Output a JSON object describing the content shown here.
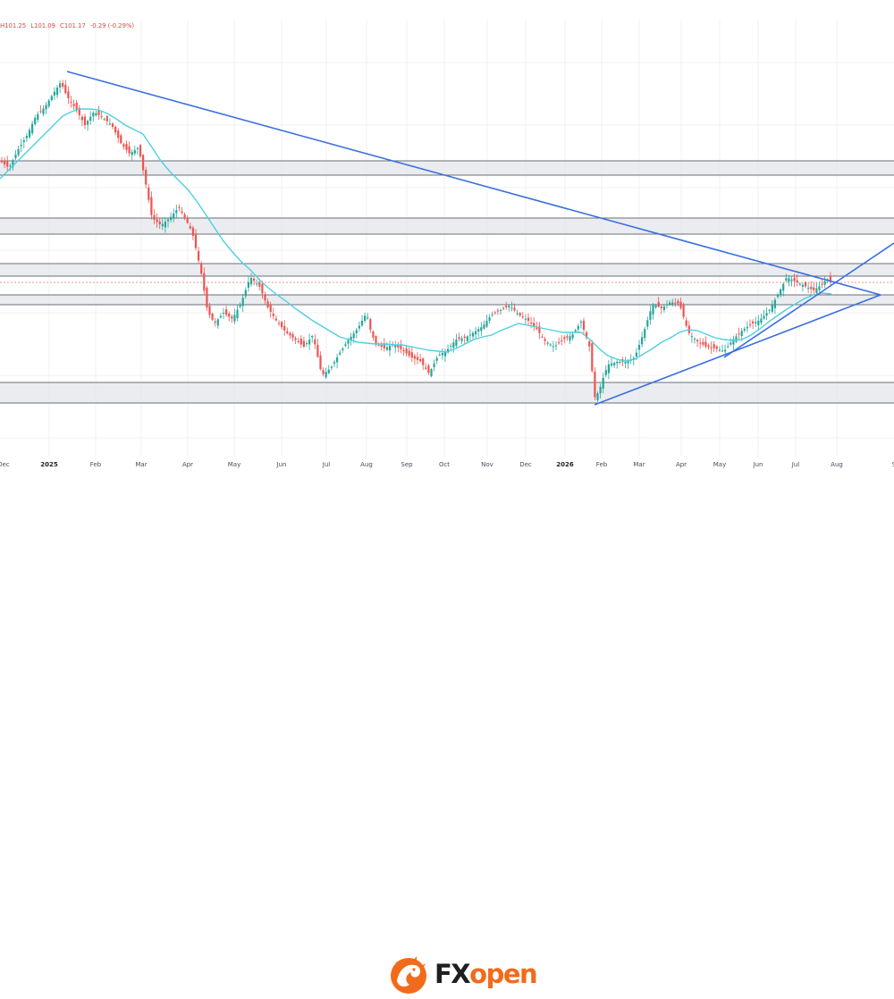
{
  "ohlc": {
    "high": "H101.25",
    "low": "L101.09",
    "close": "C101.17",
    "change": "-0.29 (-0.29%)"
  },
  "brand": {
    "fx": "FX",
    "open": "open",
    "accent": "#f26a1b",
    "dark": "#1f1f1f",
    "icon": "dragon-logo-icon"
  },
  "colors": {
    "up": "#26a69a",
    "down": "#ef5350",
    "ma": "#4dd0e1",
    "trendline": "#3b6fe0",
    "zone_fill": "#e3e5e9",
    "zone_border": "#6b6f78"
  },
  "chart_data": {
    "type": "candlestick",
    "x_ticks": [
      "Dec",
      "2025",
      "Feb",
      "Mar",
      "Apr",
      "May",
      "Jun",
      "Jul",
      "Aug",
      "Sep",
      "Oct",
      "Nov",
      "Dec",
      "2026",
      "Feb",
      "Mar",
      "Apr",
      "May",
      "Jun",
      "Jul",
      "Aug",
      "S"
    ],
    "y_ticks": [],
    "close_path": [
      [
        0,
        180
      ],
      [
        10,
        188
      ],
      [
        20,
        168
      ],
      [
        30,
        152
      ],
      [
        40,
        130
      ],
      [
        50,
        120
      ],
      [
        60,
        104
      ],
      [
        68,
        92
      ],
      [
        75,
        108
      ],
      [
        85,
        122
      ],
      [
        95,
        140
      ],
      [
        105,
        125
      ],
      [
        115,
        132
      ],
      [
        125,
        140
      ],
      [
        135,
        160
      ],
      [
        145,
        172
      ],
      [
        155,
        165
      ],
      [
        162,
        200
      ],
      [
        170,
        244
      ],
      [
        180,
        252
      ],
      [
        190,
        244
      ],
      [
        200,
        232
      ],
      [
        210,
        250
      ],
      [
        215,
        260
      ],
      [
        220,
        282
      ],
      [
        225,
        305
      ],
      [
        232,
        348
      ],
      [
        240,
        362
      ],
      [
        250,
        350
      ],
      [
        260,
        357
      ],
      [
        270,
        338
      ],
      [
        280,
        310
      ],
      [
        290,
        320
      ],
      [
        300,
        345
      ],
      [
        310,
        360
      ],
      [
        320,
        372
      ],
      [
        330,
        380
      ],
      [
        340,
        388
      ],
      [
        350,
        375
      ],
      [
        360,
        420
      ],
      [
        370,
        412
      ],
      [
        380,
        395
      ],
      [
        390,
        380
      ],
      [
        400,
        368
      ],
      [
        410,
        350
      ],
      [
        415,
        372
      ],
      [
        420,
        384
      ],
      [
        430,
        390
      ],
      [
        440,
        385
      ],
      [
        450,
        392
      ],
      [
        460,
        400
      ],
      [
        470,
        404
      ],
      [
        480,
        418
      ],
      [
        490,
        398
      ],
      [
        500,
        392
      ],
      [
        510,
        380
      ],
      [
        520,
        378
      ],
      [
        530,
        372
      ],
      [
        540,
        365
      ],
      [
        550,
        352
      ],
      [
        560,
        347
      ],
      [
        570,
        342
      ],
      [
        580,
        352
      ],
      [
        590,
        358
      ],
      [
        600,
        368
      ],
      [
        610,
        382
      ],
      [
        620,
        388
      ],
      [
        630,
        380
      ],
      [
        640,
        375
      ],
      [
        650,
        360
      ],
      [
        660,
        390
      ],
      [
        665,
        445
      ],
      [
        670,
        438
      ],
      [
        675,
        422
      ],
      [
        680,
        408
      ],
      [
        690,
        405
      ],
      [
        700,
        405
      ],
      [
        710,
        400
      ],
      [
        720,
        372
      ],
      [
        730,
        340
      ],
      [
        740,
        345
      ],
      [
        750,
        338
      ],
      [
        760,
        340
      ],
      [
        770,
        372
      ],
      [
        780,
        382
      ],
      [
        790,
        388
      ],
      [
        800,
        390
      ],
      [
        810,
        393
      ],
      [
        820,
        380
      ],
      [
        830,
        370
      ],
      [
        840,
        363
      ],
      [
        850,
        358
      ],
      [
        860,
        348
      ],
      [
        870,
        330
      ],
      [
        880,
        310
      ],
      [
        890,
        315
      ],
      [
        900,
        320
      ],
      [
        910,
        325
      ],
      [
        920,
        318
      ],
      [
        925,
        312
      ],
      [
        930,
        316
      ]
    ],
    "ma_path": [
      [
        0,
        200
      ],
      [
        10,
        190
      ],
      [
        20,
        180
      ],
      [
        30,
        170
      ],
      [
        40,
        160
      ],
      [
        50,
        150
      ],
      [
        60,
        140
      ],
      [
        70,
        130
      ],
      [
        80,
        125
      ],
      [
        90,
        122
      ],
      [
        100,
        122
      ],
      [
        110,
        123
      ],
      [
        120,
        127
      ],
      [
        130,
        133
      ],
      [
        140,
        140
      ],
      [
        150,
        145
      ],
      [
        160,
        150
      ],
      [
        170,
        165
      ],
      [
        180,
        180
      ],
      [
        190,
        192
      ],
      [
        200,
        202
      ],
      [
        210,
        212
      ],
      [
        220,
        225
      ],
      [
        230,
        240
      ],
      [
        240,
        255
      ],
      [
        250,
        270
      ],
      [
        260,
        282
      ],
      [
        270,
        293
      ],
      [
        280,
        302
      ],
      [
        290,
        313
      ],
      [
        300,
        322
      ],
      [
        310,
        330
      ],
      [
        320,
        337
      ],
      [
        330,
        345
      ],
      [
        340,
        352
      ],
      [
        350,
        359
      ],
      [
        360,
        365
      ],
      [
        370,
        371
      ],
      [
        380,
        377
      ],
      [
        390,
        380
      ],
      [
        400,
        383
      ],
      [
        410,
        384
      ],
      [
        420,
        385
      ],
      [
        430,
        385
      ],
      [
        440,
        386
      ],
      [
        450,
        386
      ],
      [
        460,
        388
      ],
      [
        470,
        390
      ],
      [
        480,
        392
      ],
      [
        490,
        393
      ],
      [
        500,
        394
      ],
      [
        510,
        390
      ],
      [
        520,
        385
      ],
      [
        530,
        380
      ],
      [
        540,
        377
      ],
      [
        550,
        375
      ],
      [
        560,
        370
      ],
      [
        570,
        366
      ],
      [
        580,
        362
      ],
      [
        590,
        364
      ],
      [
        600,
        366
      ],
      [
        610,
        368
      ],
      [
        620,
        370
      ],
      [
        630,
        372
      ],
      [
        640,
        372
      ],
      [
        650,
        372
      ],
      [
        660,
        380
      ],
      [
        670,
        390
      ],
      [
        680,
        398
      ],
      [
        690,
        402
      ],
      [
        700,
        404
      ],
      [
        710,
        402
      ],
      [
        720,
        396
      ],
      [
        730,
        390
      ],
      [
        740,
        383
      ],
      [
        750,
        378
      ],
      [
        760,
        372
      ],
      [
        770,
        369
      ],
      [
        780,
        370
      ],
      [
        790,
        374
      ],
      [
        800,
        378
      ],
      [
        810,
        380
      ],
      [
        820,
        381
      ],
      [
        830,
        380
      ],
      [
        840,
        375
      ],
      [
        850,
        368
      ],
      [
        860,
        360
      ],
      [
        870,
        353
      ],
      [
        880,
        346
      ],
      [
        890,
        340
      ],
      [
        900,
        334
      ],
      [
        910,
        330
      ],
      [
        920,
        328
      ],
      [
        930,
        329
      ]
    ],
    "zones": [
      [
        180,
        196
      ],
      [
        244,
        262
      ],
      [
        295,
        309
      ],
      [
        330,
        341
      ],
      [
        428,
        451
      ]
    ],
    "trendlines": [
      [
        [
          75,
          80
        ],
        [
          985,
          330
        ]
      ],
      [
        [
          665,
          453
        ],
        [
          985,
          330
        ]
      ],
      [
        [
          810,
          400
        ],
        [
          1000,
          272
        ]
      ]
    ],
    "price_line": 316,
    "grid": true,
    "legend": "none"
  }
}
